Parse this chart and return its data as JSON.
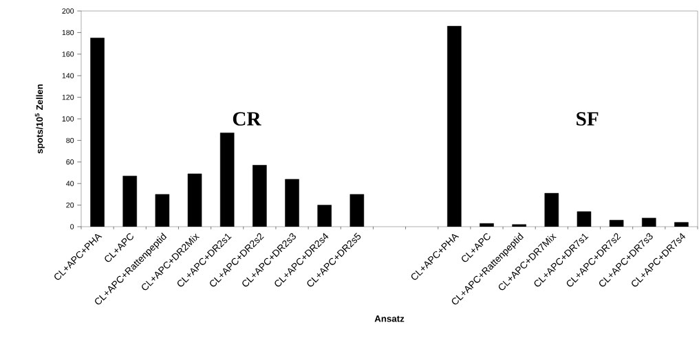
{
  "chart_data": {
    "type": "bar",
    "xlabel": "Ansatz",
    "ylabel": "spots/10$^{5}$ Zellen",
    "categories": [
      "CL+APC+PHA",
      "CL+APC",
      "CL+APC+Rattenpeptid",
      "CL+APC+DR2Mix",
      "CL+APC+DR2s1",
      "CL+APC+DR2s2",
      "CL+APC+DR2s3",
      "CL+APC+DR2s4",
      "CL+APC+DR2s5",
      null,
      null,
      "CL+APC+PHA",
      "CL+APC",
      "CL+APC+Rattenpeptid",
      "CL+APC+DR7Mix",
      "CL+APC+DR7s1",
      "CL+APC+DR7s2",
      "CL+APC+DR7s3",
      "CL+APC+DR7s4"
    ],
    "values": [
      175,
      47,
      30,
      49,
      87,
      57,
      44,
      20,
      30,
      null,
      null,
      186,
      3,
      2,
      31,
      14,
      6,
      8,
      4
    ],
    "color": "#000000",
    "ylim": [
      0,
      200
    ],
    "yticks": [
      0,
      20,
      40,
      60,
      80,
      100,
      120,
      140,
      160,
      180,
      200
    ],
    "annotations": [
      "CR",
      "SF"
    ]
  }
}
